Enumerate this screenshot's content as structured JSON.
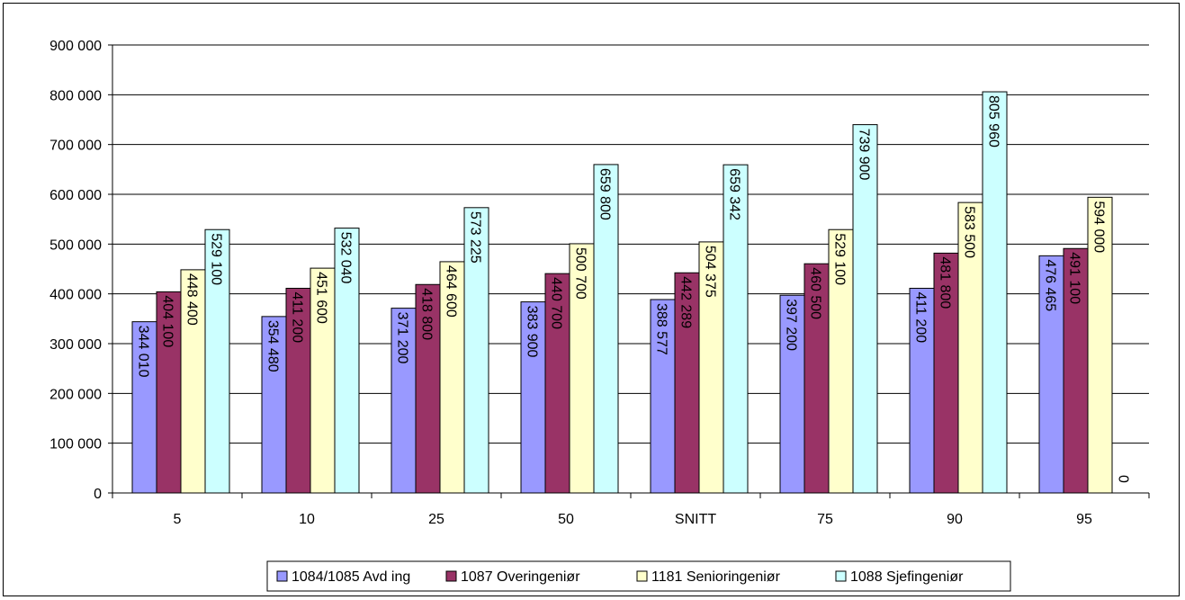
{
  "chart_data": {
    "type": "bar",
    "categories": [
      "5",
      "10",
      "25",
      "50",
      "SNITT",
      "75",
      "90",
      "95"
    ],
    "series": [
      {
        "name": "1084/1085 Avd ing",
        "color": "#9999ff",
        "values": [
          344010,
          354480,
          371200,
          383900,
          388577,
          397200,
          411200,
          476465
        ],
        "labels": [
          "344 010",
          "354 480",
          "371 200",
          "383 900",
          "388 577",
          "397 200",
          "411 200",
          "476 465"
        ]
      },
      {
        "name": "1087 Overingeniør",
        "color": "#993366",
        "values": [
          404100,
          411200,
          418800,
          440700,
          442289,
          460500,
          481800,
          491100
        ],
        "labels": [
          "404 100",
          "411 200",
          "418 800",
          "440 700",
          "442 289",
          "460 500",
          "481 800",
          "491 100"
        ]
      },
      {
        "name": "1181 Senioringeniør",
        "color": "#ffffcc",
        "values": [
          448400,
          451600,
          464600,
          500700,
          504375,
          529100,
          583500,
          594000
        ],
        "labels": [
          "448 400",
          "451 600",
          "464 600",
          "500 700",
          "504 375",
          "529 100",
          "583 500",
          "594 000"
        ]
      },
      {
        "name": "1088 Sjefingeniør",
        "color": "#ccffff",
        "values": [
          529100,
          532040,
          573225,
          659800,
          659342,
          739900,
          805960,
          0
        ],
        "labels": [
          "529 100",
          "532 040",
          "573 225",
          "659 800",
          "659 342",
          "739 900",
          "805 960",
          "0"
        ]
      }
    ],
    "ylim": [
      0,
      900000
    ],
    "yticks": [
      0,
      100000,
      200000,
      300000,
      400000,
      500000,
      600000,
      700000,
      800000,
      900000
    ],
    "ytick_labels": [
      "0",
      "100 000",
      "200 000",
      "300 000",
      "400 000",
      "500 000",
      "600 000",
      "700 000",
      "800 000",
      "900 000"
    ],
    "grid": true,
    "legend_position": "bottom",
    "data_labels": "rotated inside bars"
  }
}
